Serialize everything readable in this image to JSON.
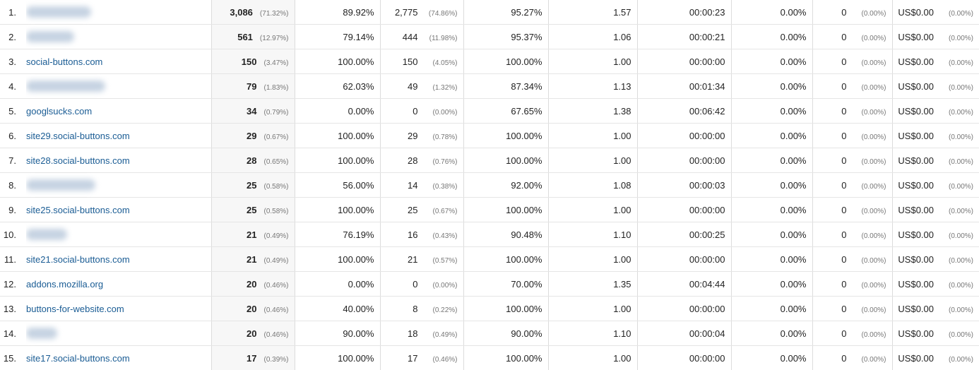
{
  "rows": [
    {
      "index": "1.",
      "source": "",
      "blurred": true,
      "sessions": "3,086",
      "sessions_pct": "(71.32%)",
      "pct_new": "89.92%",
      "new_users": "2,775",
      "new_users_pct": "(74.86%)",
      "bounce": "95.27%",
      "pages": "1.57",
      "duration": "00:00:23",
      "conv_rate": "0.00%",
      "completions": "0",
      "completions_pct": "(0.00%)",
      "value": "US$0.00",
      "value_pct": "(0.00%)"
    },
    {
      "index": "2.",
      "source": "",
      "blurred": true,
      "sessions": "561",
      "sessions_pct": "(12.97%)",
      "pct_new": "79.14%",
      "new_users": "444",
      "new_users_pct": "(11.98%)",
      "bounce": "95.37%",
      "pages": "1.06",
      "duration": "00:00:21",
      "conv_rate": "0.00%",
      "completions": "0",
      "completions_pct": "(0.00%)",
      "value": "US$0.00",
      "value_pct": "(0.00%)"
    },
    {
      "index": "3.",
      "source": "social-buttons.com",
      "blurred": false,
      "sessions": "150",
      "sessions_pct": "(3.47%)",
      "pct_new": "100.00%",
      "new_users": "150",
      "new_users_pct": "(4.05%)",
      "bounce": "100.00%",
      "pages": "1.00",
      "duration": "00:00:00",
      "conv_rate": "0.00%",
      "completions": "0",
      "completions_pct": "(0.00%)",
      "value": "US$0.00",
      "value_pct": "(0.00%)"
    },
    {
      "index": "4.",
      "source": "",
      "blurred": true,
      "sessions": "79",
      "sessions_pct": "(1.83%)",
      "pct_new": "62.03%",
      "new_users": "49",
      "new_users_pct": "(1.32%)",
      "bounce": "87.34%",
      "pages": "1.13",
      "duration": "00:01:34",
      "conv_rate": "0.00%",
      "completions": "0",
      "completions_pct": "(0.00%)",
      "value": "US$0.00",
      "value_pct": "(0.00%)"
    },
    {
      "index": "5.",
      "source": "googlsucks.com",
      "blurred": false,
      "sessions": "34",
      "sessions_pct": "(0.79%)",
      "pct_new": "0.00%",
      "new_users": "0",
      "new_users_pct": "(0.00%)",
      "bounce": "67.65%",
      "pages": "1.38",
      "duration": "00:06:42",
      "conv_rate": "0.00%",
      "completions": "0",
      "completions_pct": "(0.00%)",
      "value": "US$0.00",
      "value_pct": "(0.00%)"
    },
    {
      "index": "6.",
      "source": "site29.social-buttons.com",
      "blurred": false,
      "sessions": "29",
      "sessions_pct": "(0.67%)",
      "pct_new": "100.00%",
      "new_users": "29",
      "new_users_pct": "(0.78%)",
      "bounce": "100.00%",
      "pages": "1.00",
      "duration": "00:00:00",
      "conv_rate": "0.00%",
      "completions": "0",
      "completions_pct": "(0.00%)",
      "value": "US$0.00",
      "value_pct": "(0.00%)"
    },
    {
      "index": "7.",
      "source": "site28.social-buttons.com",
      "blurred": false,
      "sessions": "28",
      "sessions_pct": "(0.65%)",
      "pct_new": "100.00%",
      "new_users": "28",
      "new_users_pct": "(0.76%)",
      "bounce": "100.00%",
      "pages": "1.00",
      "duration": "00:00:00",
      "conv_rate": "0.00%",
      "completions": "0",
      "completions_pct": "(0.00%)",
      "value": "US$0.00",
      "value_pct": "(0.00%)"
    },
    {
      "index": "8.",
      "source": "",
      "blurred": true,
      "sessions": "25",
      "sessions_pct": "(0.58%)",
      "pct_new": "56.00%",
      "new_users": "14",
      "new_users_pct": "(0.38%)",
      "bounce": "92.00%",
      "pages": "1.08",
      "duration": "00:00:03",
      "conv_rate": "0.00%",
      "completions": "0",
      "completions_pct": "(0.00%)",
      "value": "US$0.00",
      "value_pct": "(0.00%)"
    },
    {
      "index": "9.",
      "source": "site25.social-buttons.com",
      "blurred": false,
      "sessions": "25",
      "sessions_pct": "(0.58%)",
      "pct_new": "100.00%",
      "new_users": "25",
      "new_users_pct": "(0.67%)",
      "bounce": "100.00%",
      "pages": "1.00",
      "duration": "00:00:00",
      "conv_rate": "0.00%",
      "completions": "0",
      "completions_pct": "(0.00%)",
      "value": "US$0.00",
      "value_pct": "(0.00%)"
    },
    {
      "index": "10.",
      "source": "",
      "blurred": true,
      "sessions": "21",
      "sessions_pct": "(0.49%)",
      "pct_new": "76.19%",
      "new_users": "16",
      "new_users_pct": "(0.43%)",
      "bounce": "90.48%",
      "pages": "1.10",
      "duration": "00:00:25",
      "conv_rate": "0.00%",
      "completions": "0",
      "completions_pct": "(0.00%)",
      "value": "US$0.00",
      "value_pct": "(0.00%)"
    },
    {
      "index": "11.",
      "source": "site21.social-buttons.com",
      "blurred": false,
      "sessions": "21",
      "sessions_pct": "(0.49%)",
      "pct_new": "100.00%",
      "new_users": "21",
      "new_users_pct": "(0.57%)",
      "bounce": "100.00%",
      "pages": "1.00",
      "duration": "00:00:00",
      "conv_rate": "0.00%",
      "completions": "0",
      "completions_pct": "(0.00%)",
      "value": "US$0.00",
      "value_pct": "(0.00%)"
    },
    {
      "index": "12.",
      "source": "addons.mozilla.org",
      "blurred": false,
      "sessions": "20",
      "sessions_pct": "(0.46%)",
      "pct_new": "0.00%",
      "new_users": "0",
      "new_users_pct": "(0.00%)",
      "bounce": "70.00%",
      "pages": "1.35",
      "duration": "00:04:44",
      "conv_rate": "0.00%",
      "completions": "0",
      "completions_pct": "(0.00%)",
      "value": "US$0.00",
      "value_pct": "(0.00%)"
    },
    {
      "index": "13.",
      "source": "buttons-for-website.com",
      "blurred": false,
      "sessions": "20",
      "sessions_pct": "(0.46%)",
      "pct_new": "40.00%",
      "new_users": "8",
      "new_users_pct": "(0.22%)",
      "bounce": "100.00%",
      "pages": "1.00",
      "duration": "00:00:00",
      "conv_rate": "0.00%",
      "completions": "0",
      "completions_pct": "(0.00%)",
      "value": "US$0.00",
      "value_pct": "(0.00%)"
    },
    {
      "index": "14.",
      "source": "",
      "blurred": true,
      "sessions": "20",
      "sessions_pct": "(0.46%)",
      "pct_new": "90.00%",
      "new_users": "18",
      "new_users_pct": "(0.49%)",
      "bounce": "90.00%",
      "pages": "1.10",
      "duration": "00:00:04",
      "conv_rate": "0.00%",
      "completions": "0",
      "completions_pct": "(0.00%)",
      "value": "US$0.00",
      "value_pct": "(0.00%)"
    },
    {
      "index": "15.",
      "source": "site17.social-buttons.com",
      "blurred": false,
      "sessions": "17",
      "sessions_pct": "(0.39%)",
      "pct_new": "100.00%",
      "new_users": "17",
      "new_users_pct": "(0.46%)",
      "bounce": "100.00%",
      "pages": "1.00",
      "duration": "00:00:00",
      "conv_rate": "0.00%",
      "completions": "0",
      "completions_pct": "(0.00%)",
      "value": "US$0.00",
      "value_pct": "(0.00%)"
    }
  ]
}
